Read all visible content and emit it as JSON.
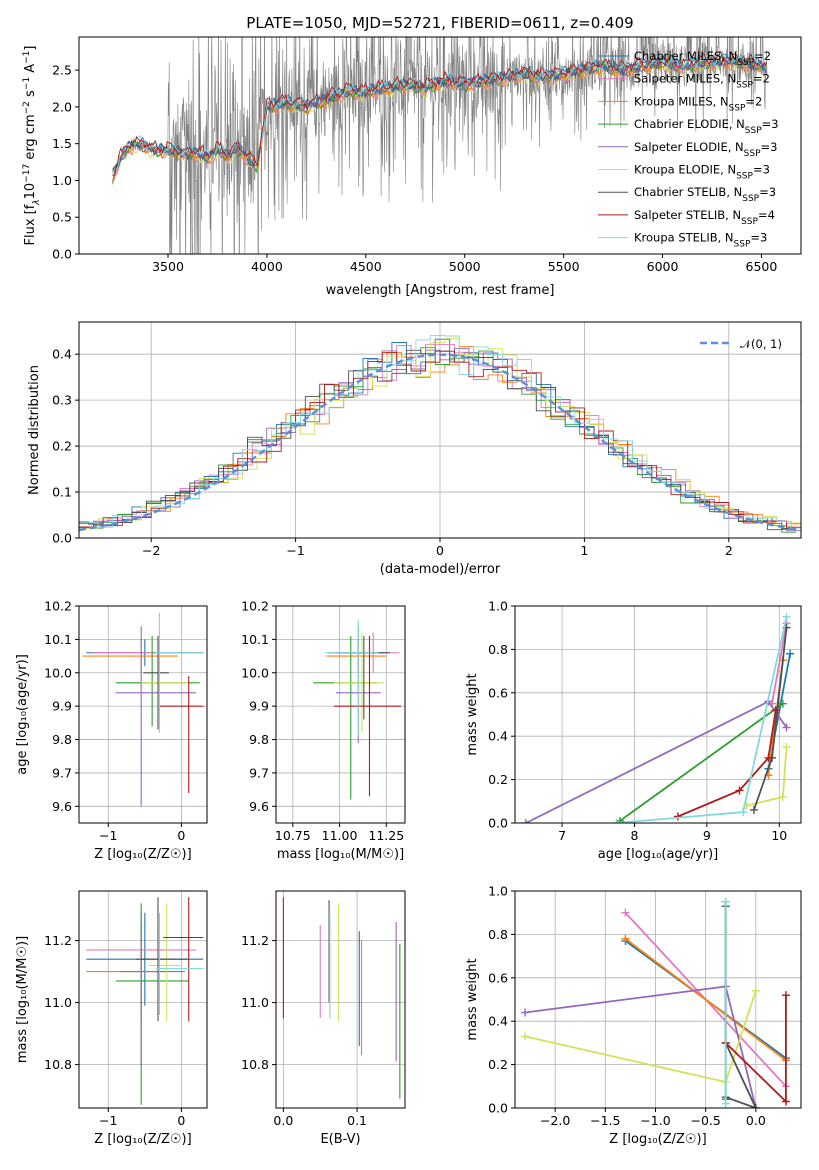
{
  "figure_title": "PLATE=1050, MJD=52721, FIBERID=0611, z=0.409",
  "colors": {
    "chabrier_miles": "#1f77b4",
    "salpeter_miles": "#e377c2",
    "kroupa_miles": "#ff7f0e",
    "chabrier_elodie": "#2ca02c",
    "salpeter_elodie": "#9467bd",
    "kroupa_elodie": "#d4e157",
    "chabrier_stelib": "#505050",
    "salpeter_stelib": "#b21a1a",
    "kroupa_stelib": "#80d8e0",
    "data": "#808080",
    "normal": "#5b8fd8"
  },
  "chart_data": [
    {
      "id": "spectrum",
      "type": "line",
      "title": "PLATE=1050, MJD=52721, FIBERID=0611, z=0.409",
      "xlabel": "wavelength [Angstrom, rest frame]",
      "ylabel": "Flux [f$_\\lambda$10$^{-17}$ erg cm$^{-2}$ s$^{-1}$ A$^{-1}$]",
      "ylabel_parts": [
        "Flux [f",
        "λ",
        "10",
        "−17",
        " erg cm",
        "−2",
        " s",
        "−1",
        " A",
        "−1",
        "]"
      ],
      "xlim": [
        3050,
        6700
      ],
      "ylim": [
        0,
        2.95
      ],
      "xticks": [
        3500,
        4000,
        4500,
        5000,
        5500,
        6000,
        6500
      ],
      "yticks": [
        0.0,
        0.5,
        1.0,
        1.5,
        2.0,
        2.5
      ],
      "legend_position": "top-right",
      "legend": [
        {
          "label": "Chabrier MILES, N",
          "sub": "SSP",
          "suffix": "=2",
          "color_key": "chabrier_miles"
        },
        {
          "label": "Salpeter MILES, N",
          "sub": "SSP",
          "suffix": "=2",
          "color_key": "salpeter_miles"
        },
        {
          "label": "Kroupa MILES, N",
          "sub": "SSP",
          "suffix": "=2",
          "color_key": "kroupa_miles"
        },
        {
          "label": "Chabrier ELODIE, N",
          "sub": "SSP",
          "suffix": "=3",
          "color_key": "chabrier_elodie"
        },
        {
          "label": "Salpeter ELODIE, N",
          "sub": "SSP",
          "suffix": "=3",
          "color_key": "salpeter_elodie"
        },
        {
          "label": "Kroupa ELODIE, N",
          "sub": "SSP",
          "suffix": "=3",
          "color_key": "kroupa_elodie"
        },
        {
          "label": "Chabrier STELIB, N",
          "sub": "SSP",
          "suffix": "=3",
          "color_key": "chabrier_stelib"
        },
        {
          "label": "Salpeter STELIB, N",
          "sub": "SSP",
          "suffix": "=4",
          "color_key": "salpeter_stelib"
        },
        {
          "label": "Kroupa STELIB, N",
          "sub": "SSP",
          "suffix": "=3",
          "color_key": "kroupa_stelib"
        }
      ],
      "model_continuum": {
        "x": [
          3220,
          3260,
          3300,
          3350,
          3400,
          3450,
          3500,
          3550,
          3600,
          3650,
          3700,
          3750,
          3800,
          3850,
          3900,
          3950,
          4000,
          4100,
          4200,
          4300,
          4400,
          4500,
          4600,
          4700,
          4800,
          4900,
          5000,
          5100,
          5200,
          5300,
          5400,
          5500,
          5600,
          5700,
          5800,
          5900,
          6000,
          6100,
          6200,
          6300,
          6400,
          6500,
          6530
        ],
        "y": [
          1.05,
          1.3,
          1.45,
          1.5,
          1.45,
          1.4,
          1.42,
          1.38,
          1.36,
          1.38,
          1.3,
          1.42,
          1.32,
          1.45,
          1.3,
          1.2,
          2.0,
          2.05,
          2.0,
          2.1,
          2.2,
          2.2,
          2.25,
          2.3,
          2.25,
          2.35,
          2.3,
          2.35,
          2.4,
          2.45,
          2.4,
          2.45,
          2.5,
          2.55,
          2.5,
          2.55,
          2.6,
          2.55,
          2.6,
          2.62,
          2.6,
          2.55,
          2.5
        ]
      },
      "data_range": [
        3220,
        6530
      ]
    },
    {
      "id": "residuals",
      "type": "bar",
      "xlabel": "(data-model)/error",
      "ylabel": "Normed distribution",
      "xlim": [
        -2.5,
        2.5
      ],
      "ylim": [
        0,
        0.47
      ],
      "xticks": [
        -2,
        -1,
        0,
        1,
        2
      ],
      "xtick_labels": [
        "−2",
        "−1",
        "0",
        "1",
        "2"
      ],
      "yticks": [
        0.0,
        0.1,
        0.2,
        0.3,
        0.4
      ],
      "grid": true,
      "legend_position": "top-right",
      "legend_label": "𝒩(0, 1)",
      "normal_curve": {
        "mean": 0,
        "sigma": 1
      }
    },
    {
      "id": "age-vs-Z",
      "type": "scatter",
      "xlabel": "Z [log₁₀(Z/Z☉)]",
      "ylabel": "age  [log₁₀(age/yr)]",
      "xlim": [
        -1.4,
        0.35
      ],
      "ylim": [
        9.55,
        10.2
      ],
      "xticks": [
        -1,
        0
      ],
      "xtick_labels": [
        "−1",
        "0"
      ],
      "yticks": [
        9.6,
        9.7,
        9.8,
        9.9,
        10.0,
        10.1,
        10.2
      ],
      "grid": true,
      "points": [
        {
          "color_key": "chabrier_miles",
          "x": -0.5,
          "y": 10.06,
          "x_err": [
            0.8,
            0.8
          ],
          "y_err": [
            0.04,
            0.04
          ]
        },
        {
          "color_key": "salpeter_miles",
          "x": -0.3,
          "y": 10.06,
          "x_err": [
            0.9,
            0.6
          ],
          "y_err": [
            0.06,
            0.06
          ]
        },
        {
          "color_key": "kroupa_miles",
          "x": -0.55,
          "y": 10.05,
          "x_err": [
            0.8,
            0.5
          ],
          "y_err": [
            0.05,
            0.05
          ]
        },
        {
          "color_key": "chabrier_elodie",
          "x": -0.4,
          "y": 9.97,
          "x_err": [
            0.5,
            0.65
          ],
          "y_err": [
            0.13,
            0.14
          ]
        },
        {
          "color_key": "salpeter_elodie",
          "x": -0.55,
          "y": 9.94,
          "x_err": [
            0.35,
            0.75
          ],
          "y_err": [
            0.34,
            0.2
          ]
        },
        {
          "color_key": "kroupa_elodie",
          "x": -0.3,
          "y": 9.97,
          "x_err": [
            0.25,
            0.4
          ],
          "y_err": [
            0.08,
            0.15
          ]
        },
        {
          "color_key": "chabrier_stelib",
          "x": -0.32,
          "y": 10.0,
          "x_err": [
            0.2,
            0.15
          ],
          "y_err": [
            0.17,
            0.11
          ]
        },
        {
          "color_key": "salpeter_stelib",
          "x": 0.1,
          "y": 9.9,
          "x_err": [
            0.4,
            0.2
          ],
          "y_err": [
            0.26,
            0.09
          ]
        },
        {
          "color_key": "kroupa_stelib",
          "x": -0.3,
          "y": 10.06,
          "x_err": [
            0.05,
            0.6
          ],
          "y_err": [
            0.24,
            0.12
          ]
        }
      ]
    },
    {
      "id": "age-vs-mass",
      "type": "scatter",
      "xlabel": "mass [log₁₀(M/M☉)]",
      "ylabel": "",
      "xlim": [
        10.66,
        11.35
      ],
      "ylim": [
        9.55,
        10.2
      ],
      "xticks": [
        10.75,
        11.0,
        11.25
      ],
      "xtick_labels": [
        "10.75",
        "11.00",
        "11.25"
      ],
      "yticks": [
        9.6,
        9.7,
        9.8,
        9.9,
        10.0,
        10.1,
        10.2
      ],
      "grid": true,
      "points": [
        {
          "color_key": "chabrier_miles",
          "x": 11.1,
          "y": 10.06,
          "x_err": [
            0.16,
            0.16
          ],
          "y_err": [
            0.04,
            0.04
          ]
        },
        {
          "color_key": "salpeter_miles",
          "x": 11.18,
          "y": 10.06,
          "x_err": [
            0.15,
            0.14
          ],
          "y_err": [
            0.06,
            0.06
          ]
        },
        {
          "color_key": "kroupa_miles",
          "x": 11.1,
          "y": 10.05,
          "x_err": [
            0.17,
            0.15
          ],
          "y_err": [
            0.05,
            0.05
          ]
        },
        {
          "color_key": "chabrier_elodie",
          "x": 11.06,
          "y": 9.97,
          "x_err": [
            0.2,
            0.14
          ],
          "y_err": [
            0.35,
            0.14
          ]
        },
        {
          "color_key": "salpeter_elodie",
          "x": 11.1,
          "y": 9.94,
          "x_err": [
            0.12,
            0.12
          ],
          "y_err": [
            0.15,
            0.2
          ]
        },
        {
          "color_key": "kroupa_elodie",
          "x": 11.12,
          "y": 9.97,
          "x_err": [
            0.15,
            0.12
          ],
          "y_err": [
            0.15,
            0.15
          ]
        },
        {
          "color_key": "chabrier_stelib",
          "x": 11.13,
          "y": 10.06,
          "x_err": [
            0.15,
            0.14
          ],
          "y_err": [
            0.2,
            0.05
          ]
        },
        {
          "color_key": "salpeter_stelib",
          "x": 11.16,
          "y": 9.9,
          "x_err": [
            0.19,
            0.17
          ],
          "y_err": [
            0.27,
            0.21
          ]
        },
        {
          "color_key": "kroupa_stelib",
          "x": 11.1,
          "y": 10.06,
          "x_err": [
            0.18,
            0.11
          ],
          "y_err": [
            0.25,
            0.1
          ]
        }
      ]
    },
    {
      "id": "mass-weight-vs-age",
      "type": "line",
      "xlabel": "age  [log₁₀(age/yr)]",
      "ylabel": "mass weight",
      "xlim": [
        6.35,
        10.3
      ],
      "ylim": [
        0,
        1.0
      ],
      "xticks": [
        7,
        8,
        9,
        10
      ],
      "yticks": [
        0.0,
        0.2,
        0.4,
        0.6,
        0.8,
        1.0
      ],
      "grid": true,
      "series": [
        {
          "color_key": "chabrier_miles",
          "x": [
            9.85,
            10.15
          ],
          "y": [
            0.25,
            0.78
          ]
        },
        {
          "color_key": "salpeter_miles",
          "x": [
            9.9,
            10.1
          ],
          "y": [
            0.55,
            0.92
          ]
        },
        {
          "color_key": "kroupa_miles",
          "x": [
            9.85,
            10.05
          ],
          "y": [
            0.22,
            0.75
          ]
        },
        {
          "color_key": "chabrier_elodie",
          "x": [
            7.8,
            10.05
          ],
          "y": [
            0.01,
            0.55
          ]
        },
        {
          "color_key": "salpeter_elodie",
          "x": [
            6.5,
            9.85,
            10.1
          ],
          "y": [
            0.0,
            0.56,
            0.44
          ]
        },
        {
          "color_key": "kroupa_elodie",
          "x": [
            9.55,
            10.05,
            10.1
          ],
          "y": [
            0.08,
            0.12,
            0.35
          ]
        },
        {
          "color_key": "chabrier_stelib",
          "x": [
            9.65,
            9.9,
            10.1
          ],
          "y": [
            0.06,
            0.3,
            0.9
          ]
        },
        {
          "color_key": "salpeter_stelib",
          "x": [
            8.6,
            9.45,
            9.85,
            9.95
          ],
          "y": [
            0.03,
            0.15,
            0.3,
            0.52
          ]
        },
        {
          "color_key": "kroupa_stelib",
          "x": [
            7.75,
            9.5,
            10.1
          ],
          "y": [
            0.0,
            0.05,
            0.95
          ]
        }
      ]
    },
    {
      "id": "mass-vs-Z",
      "type": "scatter",
      "xlabel": "Z [log₁₀(Z/Z☉)]",
      "ylabel": "mass [log₁₀(M/M☉)]",
      "xlim": [
        -1.4,
        0.35
      ],
      "ylim": [
        10.66,
        11.36
      ],
      "xticks": [
        -1,
        0
      ],
      "xtick_labels": [
        "−1",
        "0"
      ],
      "yticks": [
        10.8,
        11.0,
        11.2
      ],
      "grid": true,
      "points": [
        {
          "color_key": "chabrier_miles",
          "x": -0.5,
          "y": 11.14,
          "x_err": [
            0.8,
            0.8
          ],
          "y_err": [
            0.15,
            0.15
          ]
        },
        {
          "color_key": "salpeter_miles",
          "x": -0.55,
          "y": 11.17,
          "x_err": [
            0.75,
            0.75
          ],
          "y_err": [
            0.22,
            0.12
          ]
        },
        {
          "color_key": "kroupa_miles",
          "x": -0.55,
          "y": 11.1,
          "x_err": [
            0.75,
            0.35
          ],
          "y_err": [
            0.15,
            0.15
          ]
        },
        {
          "color_key": "chabrier_elodie",
          "x": -0.55,
          "y": 11.07,
          "x_err": [
            0.35,
            0.65
          ],
          "y_err": [
            0.4,
            0.25
          ]
        },
        {
          "color_key": "salpeter_elodie",
          "x": -0.55,
          "y": 11.1,
          "x_err": [
            0.3,
            0.6
          ],
          "y_err": [
            0.3,
            0.12
          ]
        },
        {
          "color_key": "kroupa_elodie",
          "x": -0.2,
          "y": 11.12,
          "x_err": [
            0.25,
            0.2
          ],
          "y_err": [
            0.18,
            0.2
          ]
        },
        {
          "color_key": "chabrier_stelib",
          "x": -0.32,
          "y": 11.14,
          "x_err": [
            0.3,
            0.4
          ],
          "y_err": [
            0.2,
            0.2
          ]
        },
        {
          "color_key": "salpeter_stelib",
          "x": 0.1,
          "y": 11.21,
          "x_err": [
            0.35,
            0.2
          ],
          "y_err": [
            0.27,
            0.13
          ]
        },
        {
          "color_key": "kroupa_stelib",
          "x": -0.3,
          "y": 11.11,
          "x_err": [
            0.05,
            0.6
          ],
          "y_err": [
            0.15,
            0.18
          ]
        }
      ]
    },
    {
      "id": "mass-vs-EBV",
      "type": "scatter",
      "xlabel": "E(B-V)",
      "ylabel": "",
      "xlim": [
        -0.01,
        0.165
      ],
      "ylim": [
        10.66,
        11.36
      ],
      "xticks": [
        0.0,
        0.1
      ],
      "xtick_labels": [
        "0.0",
        "0.1"
      ],
      "yticks": [
        10.8,
        11.0,
        11.2
      ],
      "grid": true,
      "points": [
        {
          "color_key": "salpeter_stelib",
          "x": 0.0,
          "y": 11.13,
          "y_err": [
            0.18,
            0.21
          ]
        },
        {
          "color_key": "salpeter_miles",
          "x": 0.05,
          "y": 11.1,
          "y_err": [
            0.15,
            0.15
          ]
        },
        {
          "color_key": "chabrier_stelib",
          "x": 0.062,
          "y": 11.2,
          "y_err": [
            0.2,
            0.13
          ]
        },
        {
          "color_key": "kroupa_stelib",
          "x": 0.063,
          "y": 11.1,
          "y_err": [
            0.15,
            0.2
          ]
        },
        {
          "color_key": "kroupa_elodie",
          "x": 0.075,
          "y": 11.15,
          "y_err": [
            0.21,
            0.17
          ]
        },
        {
          "color_key": "chabrier_miles",
          "x": 0.103,
          "y": 11.1,
          "y_err": [
            0.24,
            0.13
          ]
        },
        {
          "color_key": "kroupa_miles",
          "x": 0.106,
          "y": 11.0,
          "y_err": [
            0.17,
            0.2
          ]
        },
        {
          "color_key": "salpeter_elodie",
          "x": 0.153,
          "y": 11.05,
          "y_err": [
            0.24,
            0.21
          ]
        },
        {
          "color_key": "chabrier_elodie",
          "x": 0.158,
          "y": 11.0,
          "y_err": [
            0.31,
            0.19
          ]
        }
      ]
    },
    {
      "id": "mass-weight-vs-Z",
      "type": "line",
      "xlabel": "Z [log₁₀(Z/Z☉)]",
      "ylabel": "mass weight",
      "xlim": [
        -2.4,
        0.45
      ],
      "ylim": [
        0,
        1.0
      ],
      "xticks": [
        -2.0,
        -1.5,
        -1.0,
        -0.5,
        0.0
      ],
      "xtick_labels": [
        "−2.0",
        "−1.5",
        "−1.0",
        "−0.5",
        "0.0"
      ],
      "yticks": [
        0.0,
        0.2,
        0.4,
        0.6,
        0.8,
        1.0
      ],
      "grid": true,
      "series": [
        {
          "color_key": "chabrier_miles",
          "x": [
            -1.3,
            0.3
          ],
          "y": [
            0.77,
            0.23
          ]
        },
        {
          "color_key": "salpeter_miles",
          "x": [
            -1.3,
            0.3
          ],
          "y": [
            0.9,
            0.1
          ]
        },
        {
          "color_key": "kroupa_miles",
          "x": [
            -1.3,
            0.3
          ],
          "y": [
            0.78,
            0.22
          ]
        },
        {
          "color_key": "chabrier_elodie",
          "x": [
            -0.3,
            -0.3
          ],
          "y": [
            0.04,
            0.95
          ]
        },
        {
          "color_key": "salpeter_elodie",
          "x": [
            -2.3,
            -0.3,
            0.0
          ],
          "y": [
            0.44,
            0.56,
            0.0
          ]
        },
        {
          "color_key": "kroupa_elodie",
          "x": [
            -2.3,
            -0.3,
            0.0
          ],
          "y": [
            0.33,
            0.12,
            0.54
          ]
        },
        {
          "color_key": "chabrier_stelib",
          "x": [
            -0.3,
            0.0,
            -0.3,
            -0.3
          ],
          "y": [
            0.05,
            0.0,
            0.3,
            0.93
          ]
        },
        {
          "color_key": "salpeter_stelib",
          "x": [
            -0.3,
            0.3,
            0.3
          ],
          "y": [
            0.3,
            0.03,
            0.52
          ]
        },
        {
          "color_key": "kroupa_stelib",
          "x": [
            -0.3,
            -0.3
          ],
          "y": [
            0.02,
            0.95
          ]
        }
      ]
    }
  ]
}
